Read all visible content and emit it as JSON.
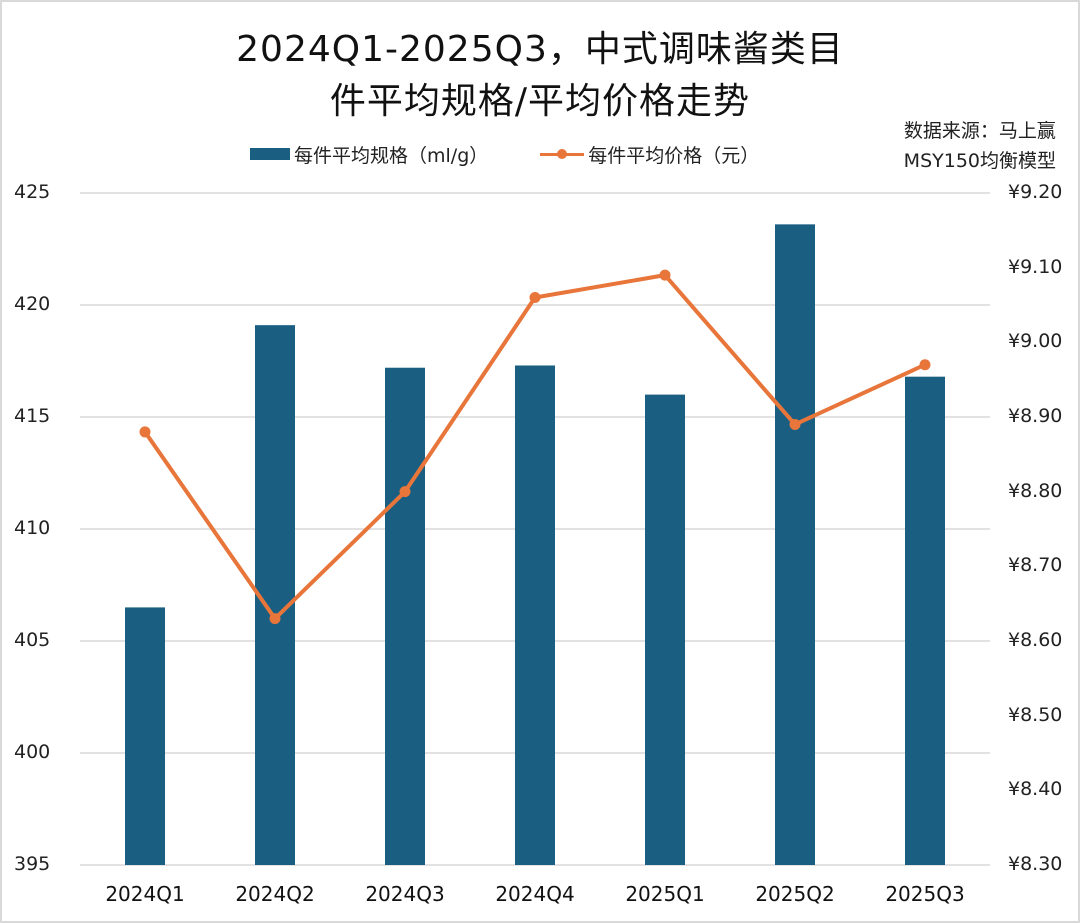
{
  "title": {
    "line1": "2024Q1-2025Q3，中式调味酱类目",
    "line2": "件平均规格/平均价格走势"
  },
  "source": {
    "line1": "数据来源：马上赢",
    "line2": "MSY150均衡模型"
  },
  "legend": {
    "bar_label": "每件平均规格（ml/g）",
    "line_label": "每件平均价格（元）"
  },
  "colors": {
    "bar": "#1a5f82",
    "line": "#e8753a",
    "grid": "#d9d9d9"
  },
  "axes": {
    "left_ticks": [
      "425",
      "420",
      "415",
      "410",
      "405",
      "400",
      "395"
    ],
    "right_ticks": [
      "¥9.20",
      "¥9.10",
      "¥9.00",
      "¥8.90",
      "¥8.80",
      "¥8.70",
      "¥8.60",
      "¥8.50",
      "¥8.40",
      "¥8.30"
    ],
    "x_ticks": [
      "2024Q1",
      "2024Q2",
      "2024Q3",
      "2024Q4",
      "2025Q1",
      "2025Q2",
      "2025Q3"
    ]
  },
  "chart_data": {
    "type": "bar+line",
    "title": "2024Q1-2025Q3，中式调味酱类目件平均规格/平均价格走势",
    "categories": [
      "2024Q1",
      "2024Q2",
      "2024Q3",
      "2024Q4",
      "2025Q1",
      "2025Q2",
      "2025Q3"
    ],
    "series": [
      {
        "name": "每件平均规格（ml/g）",
        "type": "bar",
        "axis": "left",
        "values": [
          406.5,
          419.1,
          417.2,
          417.3,
          416.0,
          423.6,
          416.8
        ]
      },
      {
        "name": "每件平均价格（元）",
        "type": "line",
        "axis": "right",
        "values": [
          8.88,
          8.63,
          8.8,
          9.06,
          9.09,
          8.89,
          8.97
        ]
      }
    ],
    "ylim_left": [
      395,
      425
    ],
    "ylim_right": [
      8.3,
      9.2
    ],
    "yticks_left_step": 5,
    "yticks_right_step": 0.1,
    "xlabel": "",
    "ylabel_left": "",
    "ylabel_right": "",
    "grid": true,
    "legend_position": "top",
    "annotation": "数据来源：马上赢 MSY150均衡模型"
  }
}
